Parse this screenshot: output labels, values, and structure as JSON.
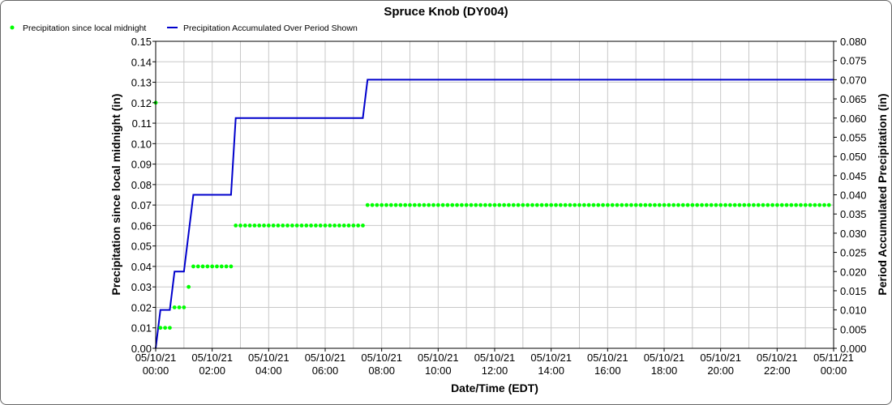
{
  "chart_data": {
    "type": "line",
    "title": "Spruce Knob (DY004)",
    "xlabel": "Date/Time (EDT)",
    "ylabel_left": "Precipitation since local midnight (in)",
    "ylabel_right": "Period Accumulated Precipitation (in)",
    "x_range_hours": [
      0,
      24
    ],
    "x_ticks": [
      {
        "hour": 0,
        "date": "05/10/21",
        "time": "00:00"
      },
      {
        "hour": 2,
        "date": "05/10/21",
        "time": "02:00"
      },
      {
        "hour": 4,
        "date": "05/10/21",
        "time": "04:00"
      },
      {
        "hour": 6,
        "date": "05/10/21",
        "time": "06:00"
      },
      {
        "hour": 8,
        "date": "05/10/21",
        "time": "08:00"
      },
      {
        "hour": 10,
        "date": "05/10/21",
        "time": "10:00"
      },
      {
        "hour": 12,
        "date": "05/10/21",
        "time": "12:00"
      },
      {
        "hour": 14,
        "date": "05/10/21",
        "time": "14:00"
      },
      {
        "hour": 16,
        "date": "05/10/21",
        "time": "16:00"
      },
      {
        "hour": 18,
        "date": "05/10/21",
        "time": "18:00"
      },
      {
        "hour": 20,
        "date": "05/10/21",
        "time": "20:00"
      },
      {
        "hour": 22,
        "date": "05/10/21",
        "time": "22:00"
      },
      {
        "hour": 24,
        "date": "05/11/21",
        "time": "00:00"
      }
    ],
    "ylim_left": [
      0,
      0.15
    ],
    "y_ticks_left": [
      "0.00",
      "0.01",
      "0.02",
      "0.03",
      "0.04",
      "0.05",
      "0.06",
      "0.07",
      "0.08",
      "0.09",
      "0.10",
      "0.11",
      "0.12",
      "0.13",
      "0.14",
      "0.15"
    ],
    "ylim_right": [
      0,
      0.08
    ],
    "y_ticks_right": [
      "0.000",
      "0.005",
      "0.010",
      "0.015",
      "0.020",
      "0.025",
      "0.030",
      "0.035",
      "0.040",
      "0.045",
      "0.050",
      "0.055",
      "0.060",
      "0.065",
      "0.070",
      "0.075",
      "0.080"
    ],
    "grid": true,
    "legend_position": "top-left",
    "series": [
      {
        "name": "Precipitation since local midnight",
        "type": "scatter",
        "axis": "left",
        "color": "#00ff00",
        "point_interval_hours": 0.1667,
        "runs": [
          {
            "start": 0.0,
            "end": 0.0,
            "value": 0.12
          },
          {
            "start": 0.1667,
            "end": 0.5,
            "value": 0.01
          },
          {
            "start": 0.6667,
            "end": 1.0,
            "value": 0.02
          },
          {
            "start": 1.1667,
            "end": 1.1667,
            "value": 0.03
          },
          {
            "start": 1.3333,
            "end": 2.6667,
            "value": 0.04
          },
          {
            "start": 2.8333,
            "end": 7.3333,
            "value": 0.06
          },
          {
            "start": 7.5,
            "end": 24.0,
            "value": 0.07
          }
        ]
      },
      {
        "name": "Precipitation Accumulated Over Period Shown",
        "type": "line",
        "axis": "right",
        "color": "#0000cc",
        "points": [
          [
            0.0,
            0.0
          ],
          [
            0.1667,
            0.01
          ],
          [
            0.5,
            0.01
          ],
          [
            0.6667,
            0.02
          ],
          [
            1.0,
            0.02
          ],
          [
            1.3333,
            0.04
          ],
          [
            2.6667,
            0.04
          ],
          [
            2.8333,
            0.06
          ],
          [
            7.3333,
            0.06
          ],
          [
            7.5,
            0.07
          ],
          [
            24.0,
            0.07
          ]
        ]
      }
    ]
  }
}
